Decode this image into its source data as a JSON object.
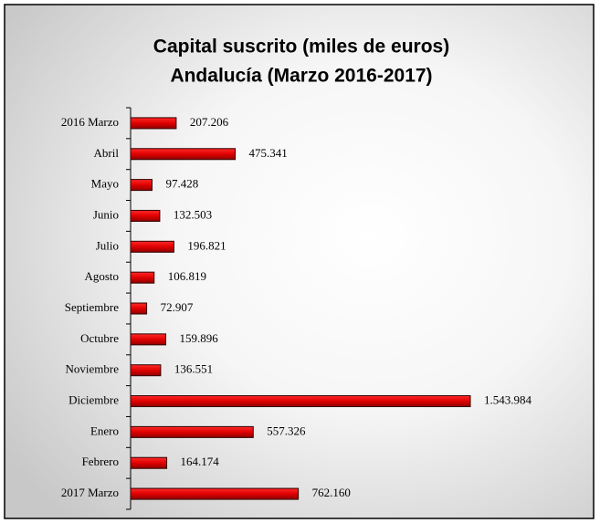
{
  "chart_data": {
    "type": "bar",
    "orientation": "horizontal",
    "title": [
      "Capital suscrito  (miles de euros)",
      "Andalucía (Marzo 2016-2017)"
    ],
    "categories": [
      "2016 Marzo",
      "Abril",
      "Mayo",
      "Junio",
      "Julio",
      "Agosto",
      "Septiembre",
      "Octubre",
      "Noviembre",
      "Diciembre",
      "Enero",
      "Febrero",
      "2017 Marzo"
    ],
    "values": [
      207206,
      475341,
      97428,
      132503,
      196821,
      106819,
      72907,
      159896,
      136551,
      1543984,
      557326,
      164174,
      762160
    ],
    "value_labels": [
      "207.206",
      "475.341",
      "97.428",
      "132.503",
      "196.821",
      "106.819",
      "72.907",
      "159.896",
      "136.551",
      "1.543.984",
      "557.326",
      "164.174",
      "762.160"
    ],
    "color": "#e00000"
  }
}
